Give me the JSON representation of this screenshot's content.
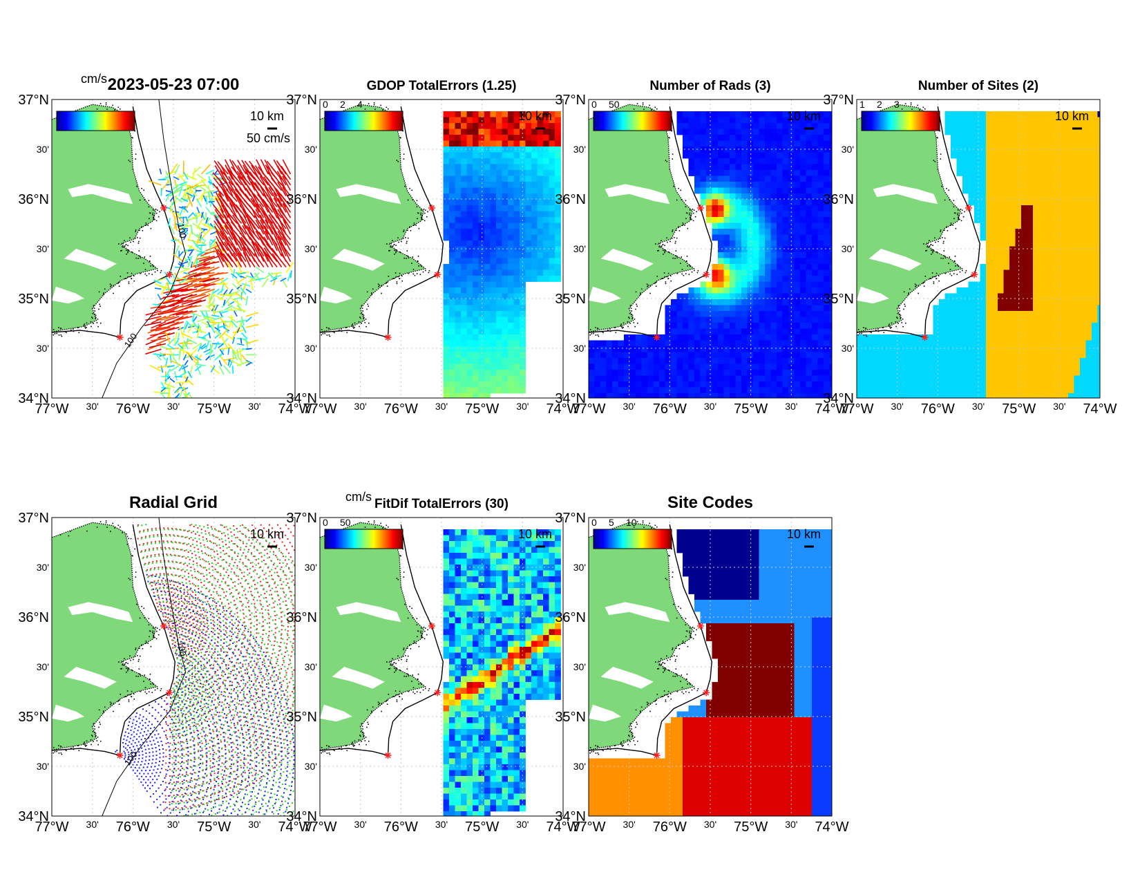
{
  "figure": {
    "timestamp_title": "2023-05-23 07:00",
    "lat_labels": [
      "37°N",
      "30'",
      "36°N",
      "30'",
      "35°N",
      "30'",
      "34°N"
    ],
    "lon_labels": [
      "77°W",
      "30'",
      "76°W",
      "30'",
      "75°W",
      "30'",
      "74°W"
    ],
    "scale_label": "10 km",
    "colors": {
      "land": "#7fd97a",
      "sea": "#ffffff",
      "coast": "#000000",
      "site_marker": "#ff2020",
      "grid": "#c8c8c8"
    },
    "sites": [
      {
        "lon": -75.62,
        "lat": 35.91
      },
      {
        "lon": -75.55,
        "lat": 35.24
      },
      {
        "lon": -76.16,
        "lat": 34.61
      }
    ]
  },
  "panels": [
    {
      "id": "totals",
      "title": "2023-05-23 07:00",
      "colorbar_unit": "cm/s",
      "colorbar_ticks": [],
      "vector_scale_label": "50 cm/s",
      "contours": [
        "100",
        "100"
      ],
      "field": "vectors"
    },
    {
      "id": "gdop",
      "title": "GDOP TotalErrors (1.25)",
      "colorbar_unit": "",
      "colorbar_ticks": [
        "0",
        "2",
        "4"
      ],
      "contours": [
        "1.25",
        "1.25",
        "1.25",
        "1.25"
      ],
      "field": "gdop"
    },
    {
      "id": "nrads",
      "title": "Number of Rads (3)",
      "colorbar_unit": "",
      "colorbar_ticks": [
        "0",
        "50"
      ],
      "contours": [],
      "field": "nrads"
    },
    {
      "id": "nsites",
      "title": "Number of Sites (2)",
      "colorbar_unit": "",
      "colorbar_ticks": [
        "1",
        "2",
        "3"
      ],
      "contours": [
        "2",
        "2",
        "2",
        "2",
        "2"
      ],
      "field": "nsites"
    },
    {
      "id": "radial",
      "title": "Radial Grid",
      "colorbar_unit": "",
      "colorbar_ticks": [],
      "contours": [
        "100",
        "100"
      ],
      "field": "radial"
    },
    {
      "id": "fitdif",
      "title": "FitDif TotalErrors (30)",
      "colorbar_unit": "cm/s",
      "colorbar_ticks": [
        "0",
        "50"
      ],
      "contours": [
        "30",
        "30",
        "30",
        "30",
        "30",
        "30",
        "30",
        "30"
      ],
      "field": "fitdif"
    },
    {
      "id": "sitecodes",
      "title": "Site Codes",
      "colorbar_unit": "",
      "colorbar_ticks": [
        "0",
        "5",
        "10"
      ],
      "contours": [],
      "field": "sitecodes"
    }
  ]
}
